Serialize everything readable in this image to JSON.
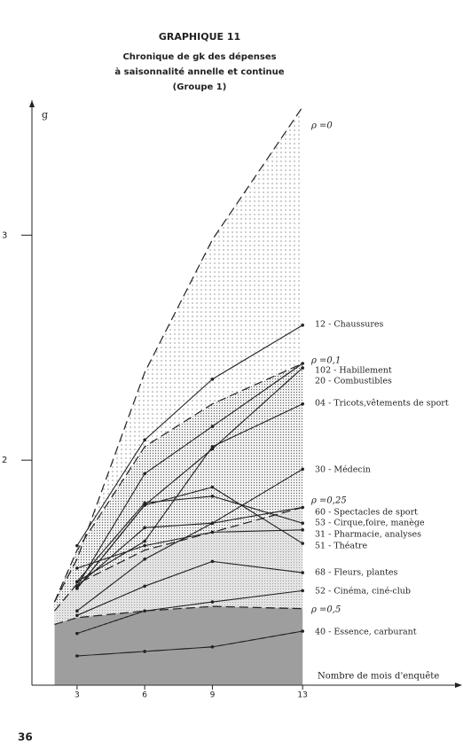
{
  "page_number": "36",
  "chart_data": {
    "type": "line",
    "header": "GRAPHIQUE 11",
    "title": [
      "Chronique de gk des dépenses",
      "à saisonnalité annelle et continue",
      "(Groupe 1)"
    ],
    "y_label": "g",
    "x_label": "Nombre de mois d'enquête",
    "x": [
      3,
      6,
      9,
      13
    ],
    "xlim": [
      1,
      19.6
    ],
    "xticks": [
      3,
      6,
      9,
      13
    ],
    "ylim": [
      1,
      3.6
    ],
    "yticks": [
      2,
      3
    ],
    "color": "#222",
    "series": [
      {
        "name": "12 - Chaussures",
        "values": [
          1.62,
          2.09,
          2.36,
          2.6
        ]
      },
      {
        "name": "102 - Habillement",
        "values": [
          1.44,
          1.94,
          2.15,
          2.43
        ]
      },
      {
        "name": "20 - Combustibles",
        "values": [
          1.43,
          1.8,
          2.05,
          2.41
        ]
      },
      {
        "name": "04 - Tricots,vêtements de sport",
        "values": [
          1.46,
          1.64,
          2.06,
          2.25
        ]
      },
      {
        "name": "30 - Médecin",
        "values": [
          1.33,
          1.56,
          1.72,
          1.96
        ]
      },
      {
        "name": "60 - Spectacles de sport",
        "values": [
          1.44,
          1.7,
          1.72,
          1.79
        ]
      },
      {
        "name": "53 - Cirque,foire, manège",
        "values": [
          1.46,
          1.81,
          1.84,
          1.72
        ]
      },
      {
        "name": "31 - Pharmacie, analyses",
        "values": [
          1.52,
          1.62,
          1.68,
          1.69
        ]
      },
      {
        "name": "51 - Théatre",
        "values": [
          1.43,
          1.8,
          1.88,
          1.63
        ]
      },
      {
        "name": "68 - Fleurs, plantes",
        "values": [
          1.31,
          1.44,
          1.55,
          1.5
        ]
      },
      {
        "name": "52 - Cinéma, ciné-club",
        "values": [
          1.23,
          1.33,
          1.37,
          1.42
        ]
      },
      {
        "name": "40 - Essence, carburant",
        "values": [
          1.13,
          1.15,
          1.17,
          1.24
        ]
      }
    ],
    "curves": {
      "x": [
        2,
        3,
        6,
        9,
        13
      ],
      "series": [
        {
          "name": "ρ =0",
          "values": [
            1.37,
            1.56,
            2.39,
            2.98,
            3.57
          ]
        },
        {
          "name": "ρ =0,1",
          "values": [
            1.37,
            1.6,
            2.06,
            2.25,
            2.43
          ]
        },
        {
          "name": "ρ =0,25",
          "values": [
            1.33,
            1.45,
            1.6,
            1.68,
            1.79
          ]
        },
        {
          "name": "ρ =0,5",
          "values": [
            1.27,
            1.3,
            1.33,
            1.35,
            1.34
          ]
        }
      ]
    }
  }
}
